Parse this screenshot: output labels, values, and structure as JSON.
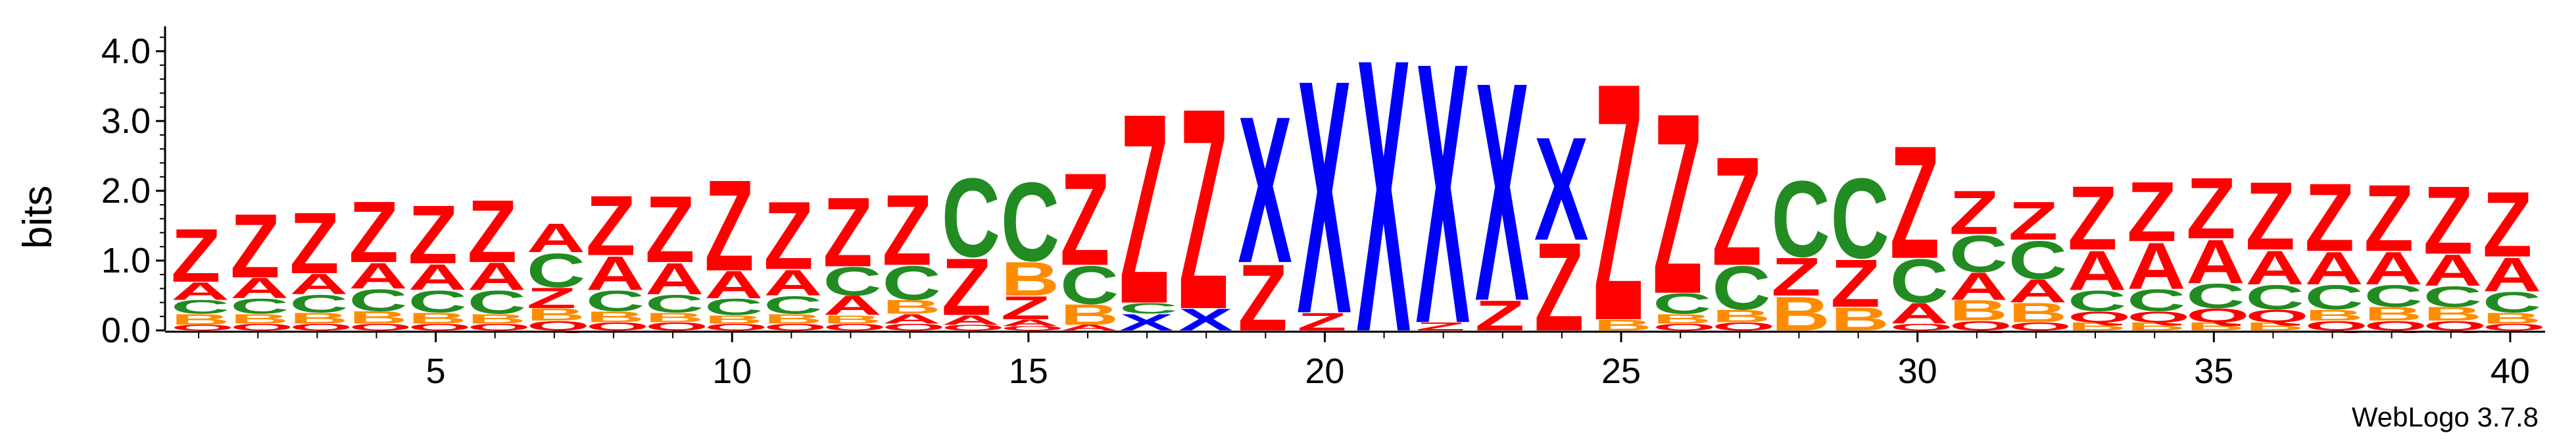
{
  "chart_data": {
    "type": "sequence-logo",
    "ylabel": "bits",
    "ylim": [
      0,
      4.3
    ],
    "yticks": [
      "0.0",
      "1.0",
      "2.0",
      "3.0",
      "4.0"
    ],
    "xticks": [
      5,
      10,
      15,
      20,
      25,
      30,
      35,
      40
    ],
    "credit": "WebLogo 3.7.8",
    "colors": {
      "A": "#ff0000",
      "Z": "#ff0000",
      "C": "#228b22",
      "Q": "#ff0000",
      "B": "#ff8c00",
      "X": "#0000ff"
    },
    "positions": [
      {
        "pos": 1,
        "stack": [
          [
            "Q",
            0.08
          ],
          [
            "B",
            0.16
          ],
          [
            "C",
            0.2
          ],
          [
            "A",
            0.26
          ],
          [
            "Z",
            0.78
          ]
        ]
      },
      {
        "pos": 2,
        "stack": [
          [
            "Q",
            0.1
          ],
          [
            "B",
            0.14
          ],
          [
            "C",
            0.22
          ],
          [
            "A",
            0.3
          ],
          [
            "Z",
            0.94
          ]
        ]
      },
      {
        "pos": 3,
        "stack": [
          [
            "Q",
            0.1
          ],
          [
            "B",
            0.16
          ],
          [
            "C",
            0.26
          ],
          [
            "A",
            0.3
          ],
          [
            "Z",
            0.9
          ]
        ]
      },
      {
        "pos": 4,
        "stack": [
          [
            "Q",
            0.1
          ],
          [
            "B",
            0.18
          ],
          [
            "C",
            0.32
          ],
          [
            "A",
            0.38
          ],
          [
            "Z",
            0.9
          ]
        ]
      },
      {
        "pos": 5,
        "stack": [
          [
            "Q",
            0.1
          ],
          [
            "B",
            0.16
          ],
          [
            "C",
            0.32
          ],
          [
            "A",
            0.38
          ],
          [
            "Z",
            0.86
          ]
        ]
      },
      {
        "pos": 6,
        "stack": [
          [
            "Q",
            0.1
          ],
          [
            "B",
            0.14
          ],
          [
            "C",
            0.34
          ],
          [
            "A",
            0.4
          ],
          [
            "Z",
            0.92
          ]
        ]
      },
      {
        "pos": 7,
        "stack": [
          [
            "Q",
            0.14
          ],
          [
            "B",
            0.18
          ],
          [
            "Z",
            0.3
          ],
          [
            "C",
            0.5
          ],
          [
            "A",
            0.42
          ]
        ]
      },
      {
        "pos": 8,
        "stack": [
          [
            "Q",
            0.12
          ],
          [
            "B",
            0.16
          ],
          [
            "C",
            0.3
          ],
          [
            "A",
            0.5
          ],
          [
            "Z",
            0.88
          ]
        ]
      },
      {
        "pos": 9,
        "stack": [
          [
            "Q",
            0.12
          ],
          [
            "B",
            0.14
          ],
          [
            "C",
            0.26
          ],
          [
            "A",
            0.46
          ],
          [
            "Z",
            0.98
          ]
        ]
      },
      {
        "pos": 10,
        "stack": [
          [
            "Q",
            0.1
          ],
          [
            "B",
            0.12
          ],
          [
            "C",
            0.24
          ],
          [
            "A",
            0.4
          ],
          [
            "Z",
            1.34
          ]
        ]
      },
      {
        "pos": 11,
        "stack": [
          [
            "Q",
            0.1
          ],
          [
            "B",
            0.14
          ],
          [
            "C",
            0.26
          ],
          [
            "A",
            0.38
          ],
          [
            "Z",
            1.0
          ]
        ]
      },
      {
        "pos": 12,
        "stack": [
          [
            "Q",
            0.1
          ],
          [
            "B",
            0.12
          ],
          [
            "A",
            0.28
          ],
          [
            "C",
            0.42
          ],
          [
            "Z",
            1.02
          ]
        ]
      },
      {
        "pos": 13,
        "stack": [
          [
            "Q",
            0.1
          ],
          [
            "A",
            0.14
          ],
          [
            "B",
            0.2
          ],
          [
            "C",
            0.5
          ],
          [
            "Z",
            1.04
          ]
        ]
      },
      {
        "pos": 14,
        "stack": [
          [
            "Q",
            0.08
          ],
          [
            "A",
            0.14
          ],
          [
            "Z",
            0.84
          ],
          [
            "C",
            1.16
          ]
        ]
      },
      {
        "pos": 15,
        "stack": [
          [
            "Q",
            0.06
          ],
          [
            "A",
            0.1
          ],
          [
            "Z",
            0.34
          ],
          [
            "B",
            0.5
          ],
          [
            "C",
            1.16
          ]
        ]
      },
      {
        "pos": 16,
        "stack": [
          [
            "A",
            0.08
          ],
          [
            "B",
            0.3
          ],
          [
            "C",
            0.56
          ],
          [
            "Z",
            1.36
          ]
        ]
      },
      {
        "pos": 17,
        "stack": [
          [
            "X",
            0.24
          ],
          [
            "C",
            0.16
          ],
          [
            "Z",
            2.8
          ]
        ]
      },
      {
        "pos": 18,
        "stack": [
          [
            "X",
            0.32
          ],
          [
            "Z",
            2.96
          ]
        ]
      },
      {
        "pos": 19,
        "stack": [
          [
            "Z",
            0.98
          ],
          [
            "X",
            2.16
          ]
        ]
      },
      {
        "pos": 20,
        "stack": [
          [
            "Z",
            0.26
          ],
          [
            "X",
            3.44
          ]
        ]
      },
      {
        "pos": 21,
        "stack": [
          [
            "X",
            4.02
          ]
        ]
      },
      {
        "pos": 22,
        "stack": [
          [
            "Z",
            0.12
          ],
          [
            "X",
            3.84
          ]
        ]
      },
      {
        "pos": 23,
        "stack": [
          [
            "Z",
            0.44
          ],
          [
            "X",
            3.22
          ]
        ]
      },
      {
        "pos": 24,
        "stack": [
          [
            "Z",
            1.3
          ],
          [
            "X",
            1.52
          ]
        ]
      },
      {
        "pos": 25,
        "stack": [
          [
            "B",
            0.16
          ],
          [
            "Z",
            3.5
          ]
        ]
      },
      {
        "pos": 26,
        "stack": [
          [
            "Q",
            0.1
          ],
          [
            "B",
            0.14
          ],
          [
            "C",
            0.3
          ],
          [
            "Z",
            2.66
          ]
        ]
      },
      {
        "pos": 27,
        "stack": [
          [
            "Q",
            0.12
          ],
          [
            "B",
            0.18
          ],
          [
            "C",
            0.64
          ],
          [
            "Z",
            1.6
          ]
        ]
      },
      {
        "pos": 28,
        "stack": [
          [
            "B",
            0.5
          ],
          [
            "Z",
            0.56
          ],
          [
            "C",
            1.12
          ]
        ]
      },
      {
        "pos": 29,
        "stack": [
          [
            "B",
            0.34
          ],
          [
            "Z",
            0.7
          ],
          [
            "C",
            1.18
          ]
        ]
      },
      {
        "pos": 30,
        "stack": [
          [
            "Q",
            0.1
          ],
          [
            "A",
            0.3
          ],
          [
            "C",
            0.64
          ],
          [
            "Z",
            1.66
          ]
        ]
      },
      {
        "pos": 31,
        "stack": [
          [
            "Q",
            0.14
          ],
          [
            "B",
            0.3
          ],
          [
            "A",
            0.4
          ],
          [
            "C",
            0.54
          ],
          [
            "Z",
            0.64
          ]
        ]
      },
      {
        "pos": 32,
        "stack": [
          [
            "Q",
            0.12
          ],
          [
            "B",
            0.28
          ],
          [
            "A",
            0.34
          ],
          [
            "C",
            0.56
          ],
          [
            "Z",
            0.56
          ]
        ]
      },
      {
        "pos": 33,
        "stack": [
          [
            "B",
            0.12
          ],
          [
            "Q",
            0.16
          ],
          [
            "C",
            0.3
          ],
          [
            "A",
            0.58
          ],
          [
            "Z",
            0.94
          ]
        ]
      },
      {
        "pos": 34,
        "stack": [
          [
            "B",
            0.12
          ],
          [
            "Q",
            0.16
          ],
          [
            "C",
            0.32
          ],
          [
            "A",
            0.68
          ],
          [
            "Z",
            0.88
          ]
        ]
      },
      {
        "pos": 35,
        "stack": [
          [
            "B",
            0.12
          ],
          [
            "Q",
            0.2
          ],
          [
            "C",
            0.36
          ],
          [
            "A",
            0.64
          ],
          [
            "Z",
            0.9
          ]
        ]
      },
      {
        "pos": 36,
        "stack": [
          [
            "B",
            0.12
          ],
          [
            "Q",
            0.18
          ],
          [
            "C",
            0.36
          ],
          [
            "A",
            0.5
          ],
          [
            "Z",
            1.0
          ]
        ]
      },
      {
        "pos": 37,
        "stack": [
          [
            "Q",
            0.14
          ],
          [
            "B",
            0.16
          ],
          [
            "C",
            0.36
          ],
          [
            "A",
            0.48
          ],
          [
            "Z",
            1.0
          ]
        ]
      },
      {
        "pos": 38,
        "stack": [
          [
            "Q",
            0.14
          ],
          [
            "B",
            0.2
          ],
          [
            "C",
            0.32
          ],
          [
            "A",
            0.48
          ],
          [
            "Z",
            0.98
          ]
        ]
      },
      {
        "pos": 39,
        "stack": [
          [
            "Q",
            0.14
          ],
          [
            "B",
            0.2
          ],
          [
            "C",
            0.3
          ],
          [
            "A",
            0.46
          ],
          [
            "Z",
            1.0
          ]
        ]
      },
      {
        "pos": 40,
        "stack": [
          [
            "Q",
            0.1
          ],
          [
            "B",
            0.16
          ],
          [
            "C",
            0.3
          ],
          [
            "A",
            0.5
          ],
          [
            "Z",
            0.96
          ]
        ]
      }
    ]
  }
}
